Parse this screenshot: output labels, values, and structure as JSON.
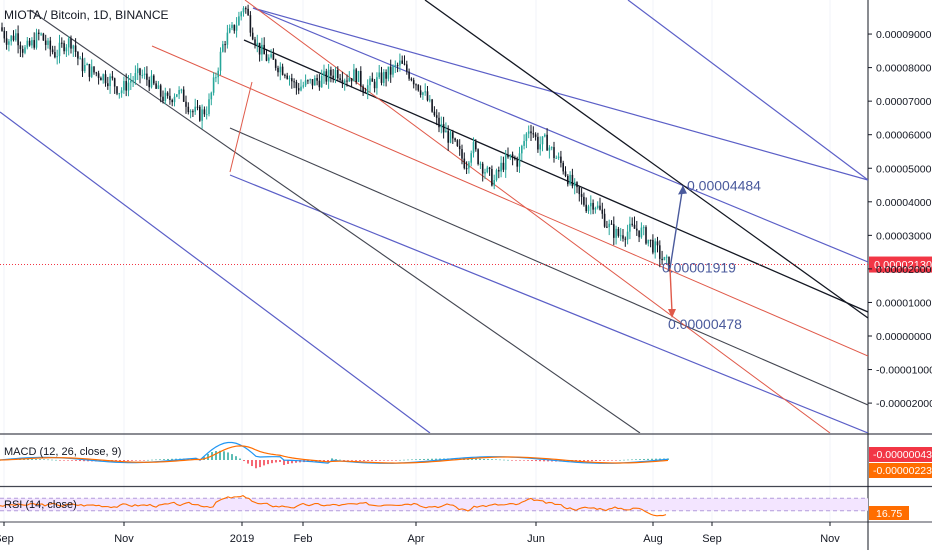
{
  "header": {
    "symbol_label": "MIOTA / Bitcoin, 1D, BINANCE"
  },
  "chart_data": [
    {
      "type": "candlestick",
      "title": "MIOTA / Bitcoin, 1D, BINANCE",
      "x_tick_labels": [
        "Sep",
        "Nov",
        "2019",
        "Feb",
        "Apr",
        "Jun",
        "Aug",
        "Sep",
        "Nov"
      ],
      "y_tick_labels": [
        "0.00009000",
        "0.00008000",
        "0.00007000",
        "0.00006000",
        "0.00005000",
        "0.00004000",
        "0.00003000",
        "0.00002000",
        "0.00001000",
        "0.00000000",
        "-0.00001000",
        "-0.00002000"
      ],
      "y_ticks": [
        9e-05,
        8e-05,
        7e-05,
        6e-05,
        5e-05,
        4e-05,
        3e-05,
        2e-05,
        1e-05,
        0.0,
        -1e-05,
        -2e-05
      ],
      "ylim": [
        -2.3e-05,
        0.0001
      ],
      "last_price": {
        "label": "0.00002130",
        "value": 2.13e-05,
        "color": "#f23645"
      },
      "candle_colors": {
        "up": "#26a69a",
        "down": "#131722"
      },
      "price_path": [
        [
          0,
          9.2e-05
        ],
        [
          8,
          8.8e-05
        ],
        [
          16,
          9e-05
        ],
        [
          24,
          8.5e-05
        ],
        [
          32,
          8.7e-05
        ],
        [
          40,
          9e-05
        ],
        [
          48,
          8.6e-05
        ],
        [
          56,
          8.4e-05
        ],
        [
          64,
          8.7e-05
        ],
        [
          72,
          8.8e-05
        ],
        [
          80,
          8.1e-05
        ],
        [
          90,
          7.9e-05
        ],
        [
          100,
          7.8e-05
        ],
        [
          112,
          7.6e-05
        ],
        [
          120,
          7.3e-05
        ],
        [
          130,
          7.6e-05
        ],
        [
          140,
          7.8e-05
        ],
        [
          150,
          7.6e-05
        ],
        [
          160,
          7.2e-05
        ],
        [
          168,
          7e-05
        ],
        [
          176,
          7.3e-05
        ],
        [
          184,
          7.1e-05
        ],
        [
          192,
          6.7e-05
        ],
        [
          200,
          6.6e-05
        ],
        [
          208,
          6.8e-05
        ],
        [
          216,
          7.8e-05
        ],
        [
          224,
          8.8e-05
        ],
        [
          232,
          9.1e-05
        ],
        [
          238,
          9.4e-05
        ],
        [
          244,
          9.9e-05
        ],
        [
          250,
          9.3e-05
        ],
        [
          258,
          8.6e-05
        ],
        [
          266,
          8.3e-05
        ],
        [
          276,
          8.1e-05
        ],
        [
          286,
          7.9e-05
        ],
        [
          296,
          7.4e-05
        ],
        [
          306,
          7.5e-05
        ],
        [
          316,
          7.6e-05
        ],
        [
          326,
          7.7e-05
        ],
        [
          336,
          7.9e-05
        ],
        [
          346,
          7.7e-05
        ],
        [
          356,
          7.8e-05
        ],
        [
          364,
          7.4e-05
        ],
        [
          372,
          7.5e-05
        ],
        [
          382,
          7.7e-05
        ],
        [
          392,
          7.9e-05
        ],
        [
          400,
          8.1e-05
        ],
        [
          410,
          7.8e-05
        ],
        [
          420,
          7.4e-05
        ],
        [
          428,
          7e-05
        ],
        [
          436,
          6.4e-05
        ],
        [
          444,
          6.1e-05
        ],
        [
          452,
          5.8e-05
        ],
        [
          460,
          5.4e-05
        ],
        [
          466,
          5.1e-05
        ],
        [
          472,
          5.7e-05
        ],
        [
          478,
          5.3e-05
        ],
        [
          486,
          4.9e-05
        ],
        [
          494,
          4.6e-05
        ],
        [
          502,
          5.1e-05
        ],
        [
          510,
          5.3e-05
        ],
        [
          518,
          5.2e-05
        ],
        [
          524,
          5.8e-05
        ],
        [
          530,
          6.3e-05
        ],
        [
          538,
          5.7e-05
        ],
        [
          546,
          5.8e-05
        ],
        [
          554,
          5.4e-05
        ],
        [
          562,
          5.1e-05
        ],
        [
          570,
          4.6e-05
        ],
        [
          578,
          4.2e-05
        ],
        [
          586,
          3.9e-05
        ],
        [
          594,
          4e-05
        ],
        [
          602,
          3.6e-05
        ],
        [
          610,
          3.2e-05
        ],
        [
          618,
          3e-05
        ],
        [
          626,
          3.1e-05
        ],
        [
          634,
          3.2e-05
        ],
        [
          642,
          3.1e-05
        ],
        [
          650,
          2.8e-05
        ],
        [
          658,
          2.5e-05
        ],
        [
          664,
          2.2e-05
        ],
        [
          670,
          2.13e-05
        ]
      ],
      "annotations": [
        {
          "text": "0.00004484",
          "value": 4.484e-05,
          "color": "#4a5a9c",
          "type": "target-up"
        },
        {
          "text": "0.00001919",
          "value": 1.919e-05,
          "color": "#4a5a9c",
          "type": "level"
        },
        {
          "text": "0.00000478",
          "value": 4.78e-06,
          "color": "#4a5a9c",
          "type": "target-down"
        }
      ],
      "drawings": {
        "channel_colors": {
          "blue": "#5b5fc7",
          "red": "#e05a4a",
          "black": "#131722",
          "gray": "#434651"
        }
      }
    },
    {
      "type": "line",
      "title": "MACD (12, 26, close, 9)",
      "legend": "MACD (12, 26, close, 9)",
      "series": [
        {
          "name": "MACD",
          "color": "#2196f3"
        },
        {
          "name": "Signal",
          "color": "#ff6d00"
        },
        {
          "name": "Histogram",
          "color": "#26a69a"
        }
      ],
      "value_labels": [
        {
          "text": "-0.00000043",
          "value": -4.3e-07,
          "color": "#f23645"
        },
        {
          "text": "-0.00000223",
          "value": -2.23e-06,
          "color": "#ff6d00"
        }
      ]
    },
    {
      "type": "line",
      "title": "RSI (14, close)",
      "legend": "RSI (14, close)",
      "series": [
        {
          "name": "RSI",
          "color": "#ff6d00"
        }
      ],
      "band": [
        30,
        70
      ],
      "value_labels": [
        {
          "text": "16.75",
          "value": 16.75,
          "color": "#ff6d00"
        }
      ]
    }
  ]
}
